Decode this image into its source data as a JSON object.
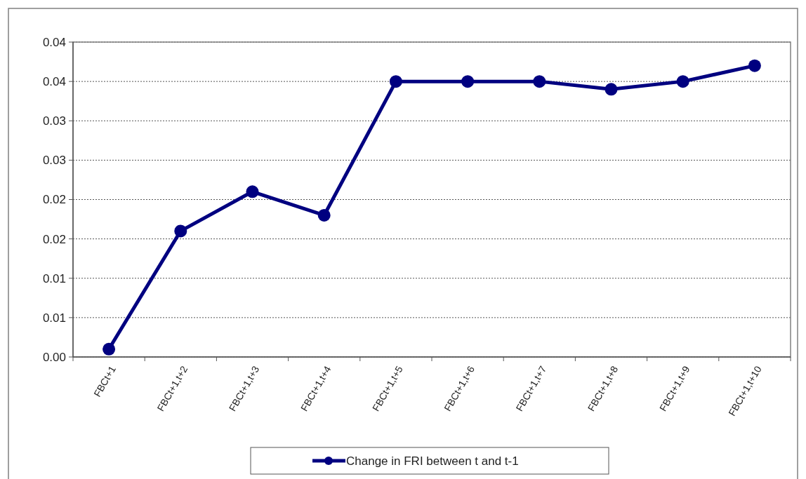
{
  "chart_data": {
    "type": "line",
    "categories": [
      "FBCt+1",
      "FBCt+1,t+2",
      "FBCt+1,t+3",
      "FBCt+1,t+4",
      "FBCt+1,t+5",
      "FBCt+1,t+6",
      "FBCt+1,t+7",
      "FBCt+1,t+8",
      "FBCt+1,t+9",
      "FBCt+1,t+10"
    ],
    "series": [
      {
        "name": "Change in FRI between t and t-1",
        "color": "#000080",
        "values": [
          0.001,
          0.016,
          0.021,
          0.018,
          0.035,
          0.035,
          0.035,
          0.034,
          0.035,
          0.037
        ]
      }
    ],
    "ylim": [
      0,
      0.04
    ],
    "yticks": [
      {
        "value": 0,
        "label": "0.00"
      },
      {
        "value": 0.005,
        "label": "0.01"
      },
      0.01,
      {
        "value": 0.015,
        "label": "0.02"
      },
      0.02,
      {
        "value": 0.025,
        "label": "0.03"
      },
      0.03,
      {
        "value": 0.035,
        "label": "0.04"
      },
      0.04
    ],
    "grid": "y",
    "legend": "bottom",
    "marker": "circle",
    "line_style": "solid"
  }
}
